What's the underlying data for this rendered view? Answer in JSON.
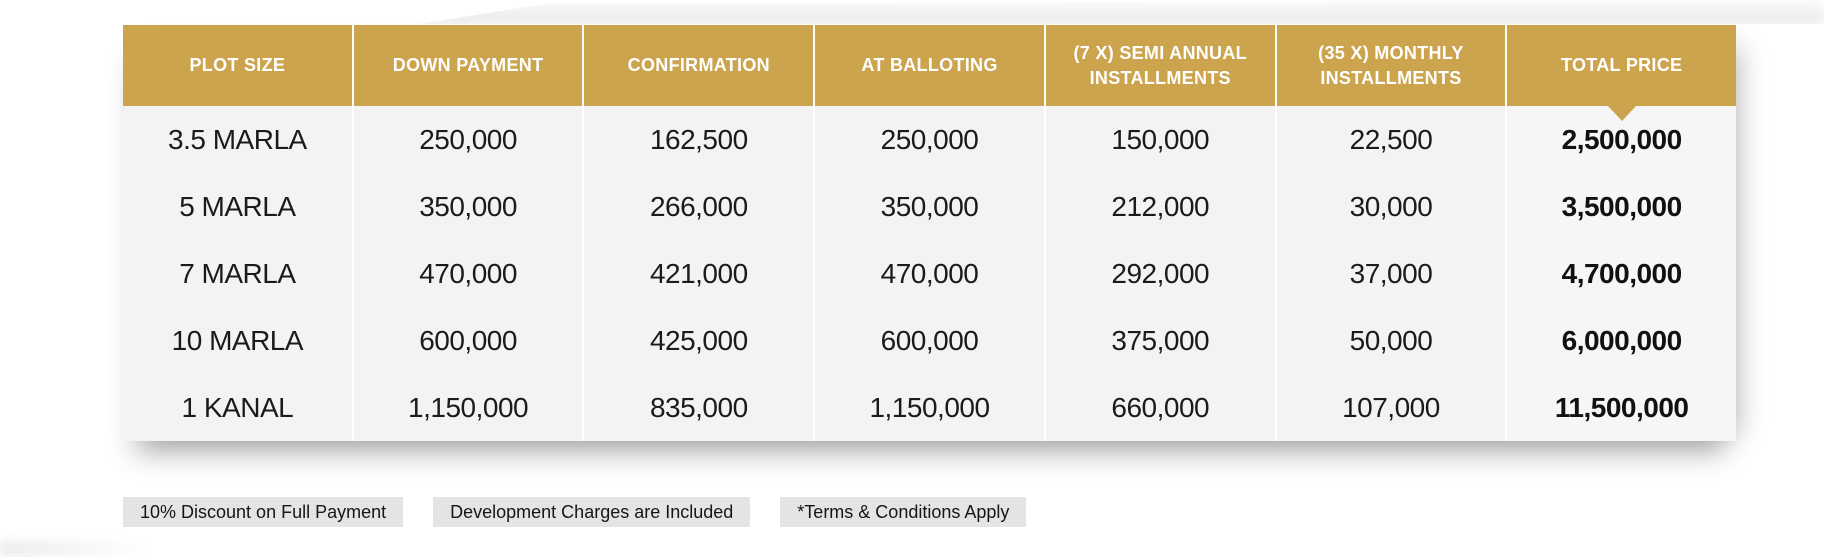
{
  "colors": {
    "header_gold": "#CCA44D",
    "header_text": "#FFFFFF",
    "row_bg": "#F3F3F3",
    "total_col_bg": "#F6F6F6",
    "badge_bg": "#E4E4E4",
    "body_text": "#1B1B1B"
  },
  "table": {
    "headers": [
      "PLOT SIZE",
      "DOWN PAYMENT",
      "CONFIRMATION",
      "AT BALLOTING",
      "(7 X) SEMI ANNUAL INSTALLMENTS",
      "(35 X) MONTHLY INSTALLMENTS",
      "TOTAL PRICE"
    ],
    "rows": [
      [
        "3.5 MARLA",
        "250,000",
        "162,500",
        "250,000",
        "150,000",
        "22,500",
        "2,500,000"
      ],
      [
        "5 MARLA",
        "350,000",
        "266,000",
        "350,000",
        "212,000",
        "30,000",
        "3,500,000"
      ],
      [
        "7 MARLA",
        "470,000",
        "421,000",
        "470,000",
        "292,000",
        "37,000",
        "4,700,000"
      ],
      [
        "10 MARLA",
        "600,000",
        "425,000",
        "600,000",
        "375,000",
        "50,000",
        "6,000,000"
      ],
      [
        "1 KANAL",
        "1,150,000",
        "835,000",
        "1,150,000",
        "660,000",
        "107,000",
        "11,500,000"
      ]
    ]
  },
  "footnotes": [
    "10% Discount on Full Payment",
    "Development Charges are Included",
    "*Terms & Conditions Apply"
  ]
}
